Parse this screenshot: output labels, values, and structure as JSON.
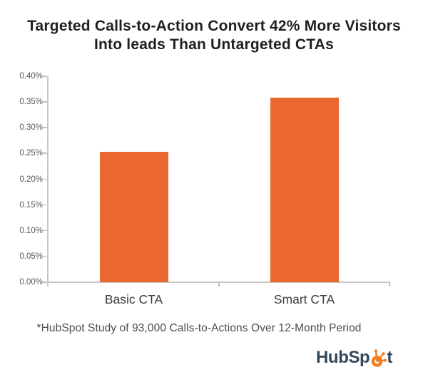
{
  "title": {
    "text": "Targeted Calls-to-Action Convert 42% More Visitors\nInto leads Than Untargeted CTAs"
  },
  "chart_data": {
    "type": "bar",
    "title": "Targeted Calls-to-Action Convert 42% More Visitors Into leads Than Untargeted CTAs",
    "categories": [
      "Basic CTA",
      "Smart CTA"
    ],
    "values": [
      0.253,
      0.358
    ],
    "value_unit": "%",
    "xlabel": "",
    "ylabel": "",
    "ylim": [
      0,
      0.4
    ],
    "ytick_step": 0.05,
    "ytick_labels_top_to_bottom": [
      "0.40%",
      "0.35%",
      "0.30%",
      "0.25%",
      "0.20%",
      "0.15%",
      "0.10%",
      "0.05%",
      "0.00%"
    ],
    "grid": false,
    "legend": false,
    "bar_color": "#ea682f",
    "axis_color": "#c7c7c7",
    "label_color": "#57585a"
  },
  "footnote": {
    "text": "*HubSpot Study of 93,000 Calls-to-Actions Over 12-Month Period"
  },
  "logo": {
    "name": "HubSpot",
    "prefix": "HubSp",
    "suffix": "t",
    "icon": "hubspot-sprocket-icon",
    "text_color": "#33475b",
    "sprocket_color": "#f57c1f"
  }
}
